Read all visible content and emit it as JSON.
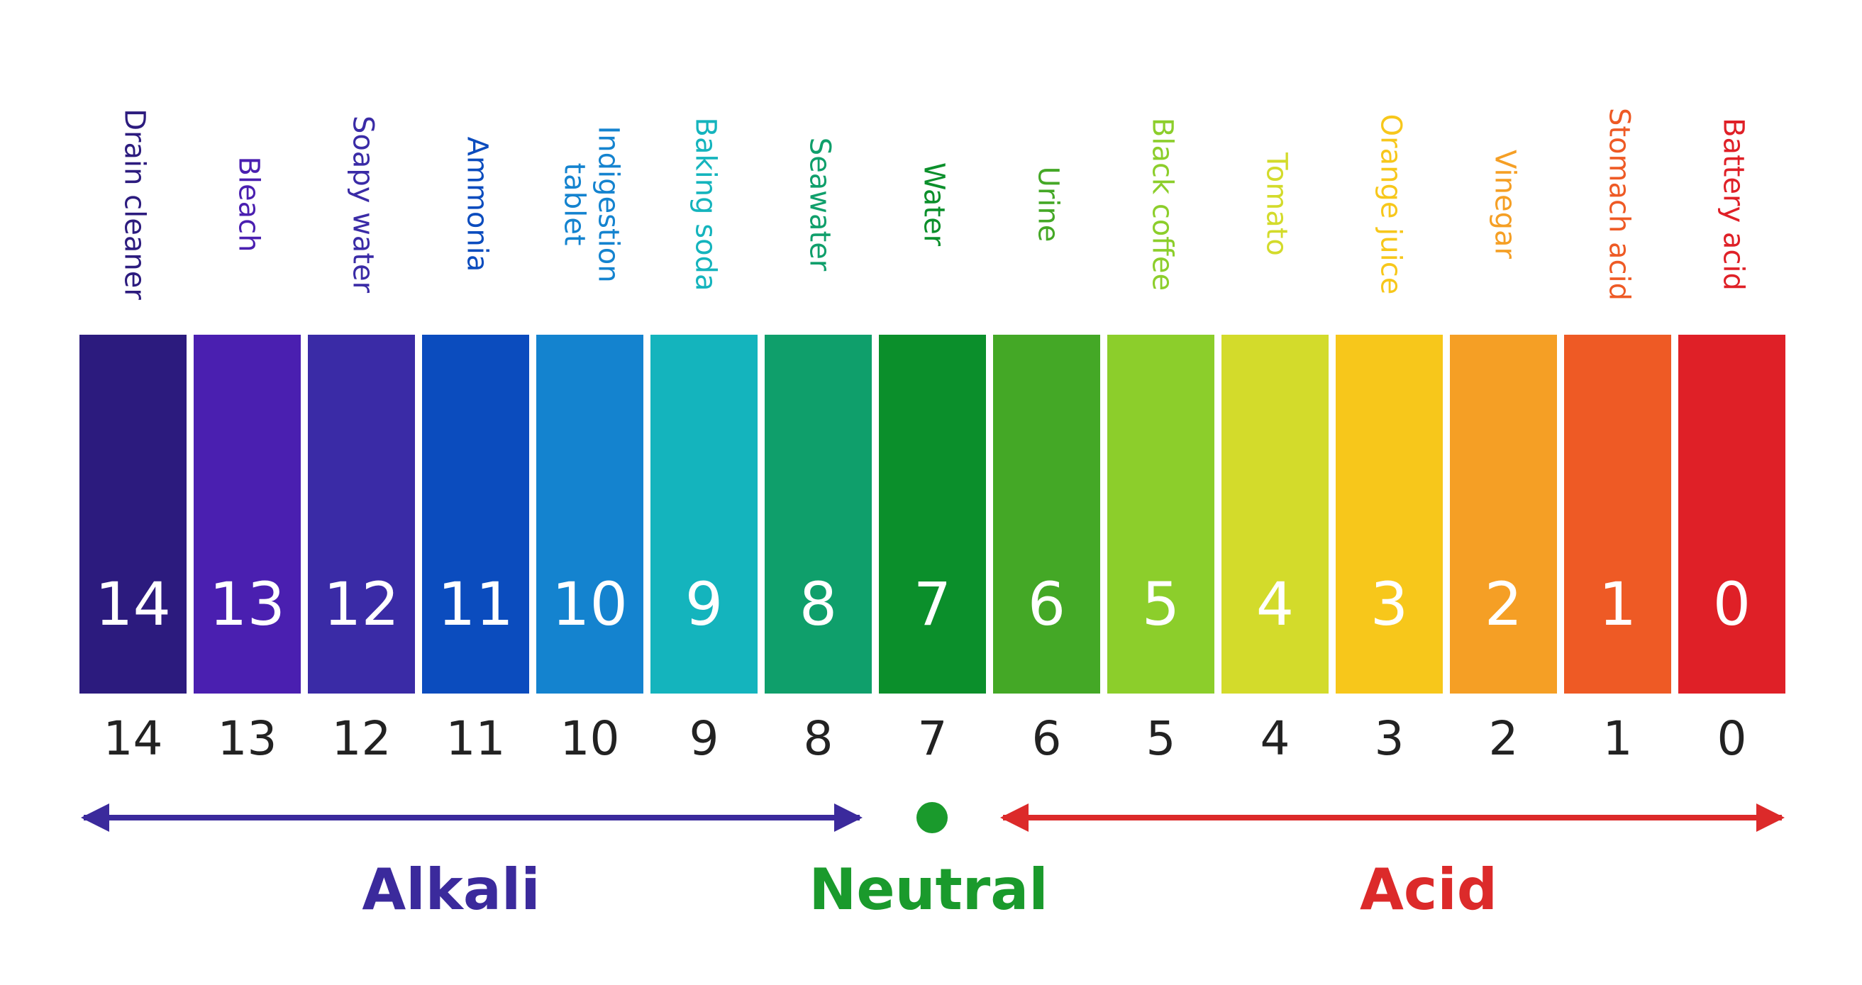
{
  "items": [
    {
      "label": [
        "Drain cleaner"
      ],
      "ph": 14,
      "color": "#2c1b7e"
    },
    {
      "label": [
        "Bleach"
      ],
      "ph": 13,
      "color": "#4a1fb0"
    },
    {
      "label": [
        "Soapy water"
      ],
      "ph": 12,
      "color": "#3a2ba6"
    },
    {
      "label": [
        "Ammonia"
      ],
      "ph": 11,
      "color": "#0b4cbe"
    },
    {
      "label": [
        "Indigestion",
        "tablet"
      ],
      "ph": 10,
      "color": "#1483cf"
    },
    {
      "label": [
        "Baking soda"
      ],
      "ph": 9,
      "color": "#14b4bd"
    },
    {
      "label": [
        "Seawater"
      ],
      "ph": 8,
      "color": "#0f9f6b"
    },
    {
      "label": [
        "Water"
      ],
      "ph": 7,
      "color": "#0b8f2b"
    },
    {
      "label": [
        "Urine"
      ],
      "ph": 6,
      "color": "#44a826"
    },
    {
      "label": [
        "Black coffee"
      ],
      "ph": 5,
      "color": "#8cce2b"
    },
    {
      "label": [
        "Tomato"
      ],
      "ph": 4,
      "color": "#d3db2b"
    },
    {
      "label": [
        "Orange juice"
      ],
      "ph": 3,
      "color": "#f7c71b"
    },
    {
      "label": [
        "Vinegar"
      ],
      "ph": 2,
      "color": "#f59f25"
    },
    {
      "label": [
        "Stomach acid"
      ],
      "ph": 1,
      "color": "#ee5a25"
    },
    {
      "label": [
        "Battery acid"
      ],
      "ph": 0,
      "color": "#df2027"
    }
  ],
  "zones": {
    "alkali": {
      "label": "Alkali",
      "color": "#3b2a9c"
    },
    "neutral": {
      "label": "Neutral",
      "color": "#1a9a2c"
    },
    "acid": {
      "label": "Acid",
      "color": "#dc2a2a"
    }
  }
}
